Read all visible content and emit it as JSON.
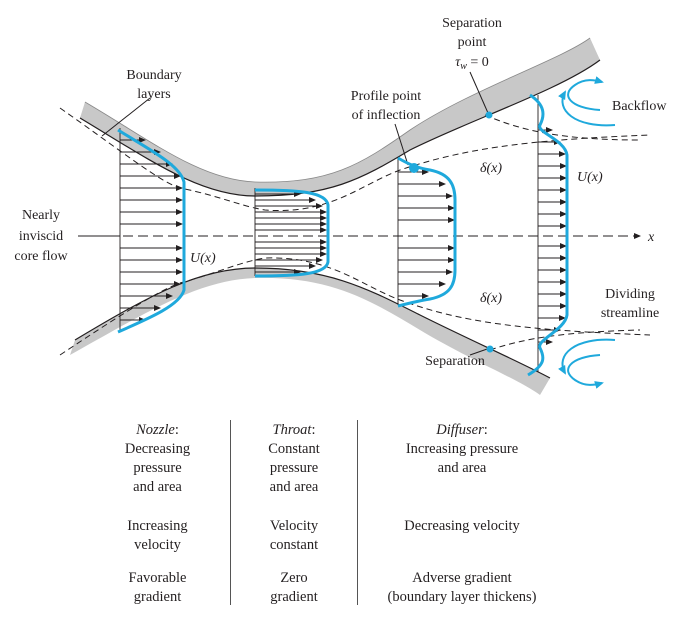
{
  "diagram": {
    "labels": {
      "separation_point_line1": "Separation",
      "separation_point_line2": "point",
      "tau_w_eq": "τ",
      "tau_w_sub": "w",
      "tau_w_val": " = 0",
      "boundary_layers_1": "Boundary",
      "boundary_layers_2": "layers",
      "profile_point_1": "Profile point",
      "profile_point_2": "of inflection",
      "backflow": "Backflow",
      "delta_top": "δ(x)",
      "delta_bottom": "δ(x)",
      "u_right": "U(x)",
      "u_left": "U(x)",
      "nearly": "Nearly",
      "inviscid": "inviscid",
      "core_flow": "core flow",
      "x_axis": "x",
      "dividing": "Dividing",
      "streamline": "streamline",
      "separation_bottom": "Separation"
    },
    "colors": {
      "profile": "#1fa9dc",
      "wall": "#c8c8c8",
      "ink": "#231f20"
    }
  },
  "table": {
    "nozzle": {
      "title": "Nozzle",
      "title_suffix": ":",
      "row1": [
        "Decreasing",
        "pressure",
        "and area"
      ],
      "row2": [
        "Increasing",
        "velocity"
      ],
      "row3": [
        "Favorable",
        "gradient"
      ]
    },
    "throat": {
      "title": "Throat",
      "title_suffix": ":",
      "row1": [
        "Constant",
        "pressure",
        "and area"
      ],
      "row2": [
        "Velocity",
        "constant"
      ],
      "row3": [
        "Zero",
        "gradient"
      ]
    },
    "diffuser": {
      "title": "Diffuser",
      "title_suffix": ":",
      "row1": [
        "Increasing pressure",
        "and area"
      ],
      "row2": [
        "Decreasing velocity"
      ],
      "row3": [
        "Adverse gradient",
        "(boundary layer thickens)"
      ]
    }
  }
}
